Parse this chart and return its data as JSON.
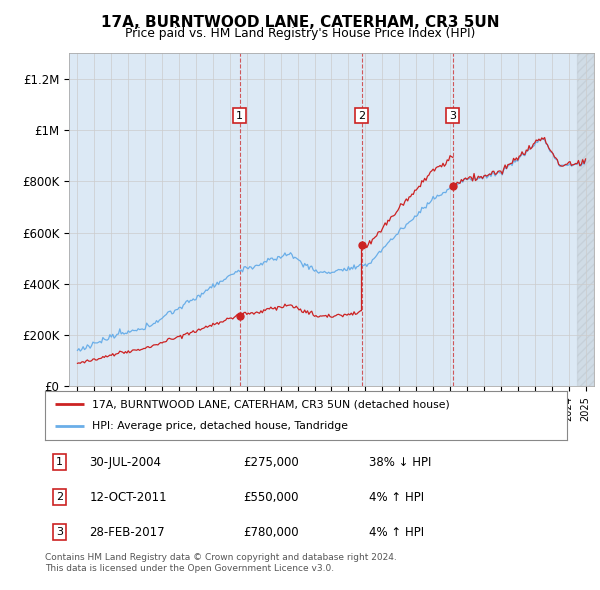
{
  "title": "17A, BURNTWOOD LANE, CATERHAM, CR3 5UN",
  "subtitle": "Price paid vs. HM Land Registry's House Price Index (HPI)",
  "background_color": "#dce9f5",
  "plot_bg_color": "#dce9f5",
  "ylim": [
    0,
    1300000
  ],
  "yticks": [
    0,
    200000,
    400000,
    600000,
    800000,
    1000000,
    1200000
  ],
  "ytick_labels": [
    "£0",
    "£200K",
    "£400K",
    "£600K",
    "£800K",
    "£1M",
    "£1.2M"
  ],
  "sale_prices": [
    275000,
    550000,
    780000
  ],
  "sale_labels": [
    "1",
    "2",
    "3"
  ],
  "sale_year_floats": [
    2004.58,
    2011.78,
    2017.16
  ],
  "hpi_color": "#6aaee8",
  "price_color": "#cc2222",
  "legend_hpi_label": "HPI: Average price, detached house, Tandridge",
  "legend_price_label": "17A, BURNTWOOD LANE, CATERHAM, CR3 5UN (detached house)",
  "table_rows": [
    {
      "label": "1",
      "date": "30-JUL-2004",
      "price": "£275,000",
      "hpi": "38% ↓ HPI"
    },
    {
      "label": "2",
      "date": "12-OCT-2011",
      "price": "£550,000",
      "hpi": "4% ↑ HPI"
    },
    {
      "label": "3",
      "date": "28-FEB-2017",
      "price": "£780,000",
      "hpi": "4% ↑ HPI"
    }
  ],
  "footer": "Contains HM Land Registry data © Crown copyright and database right 2024.\nThis data is licensed under the Open Government Licence v3.0.",
  "x_start_year": 1995,
  "x_end_year": 2025
}
